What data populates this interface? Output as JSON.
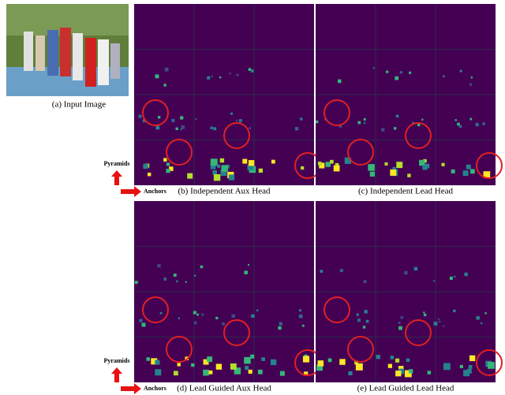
{
  "input_image": {
    "caption": "(a) Input Image"
  },
  "axis_labels": {
    "pyramids": "Pyramids",
    "anchors": "Anchors"
  },
  "panels": [
    {
      "caption": "(b) Independent Aux Head"
    },
    {
      "caption": "(c) Independent Lead Head"
    },
    {
      "caption": "(d) Lead Guided Aux Head"
    },
    {
      "caption": "(e) Lead Guided Lead Head"
    }
  ]
}
